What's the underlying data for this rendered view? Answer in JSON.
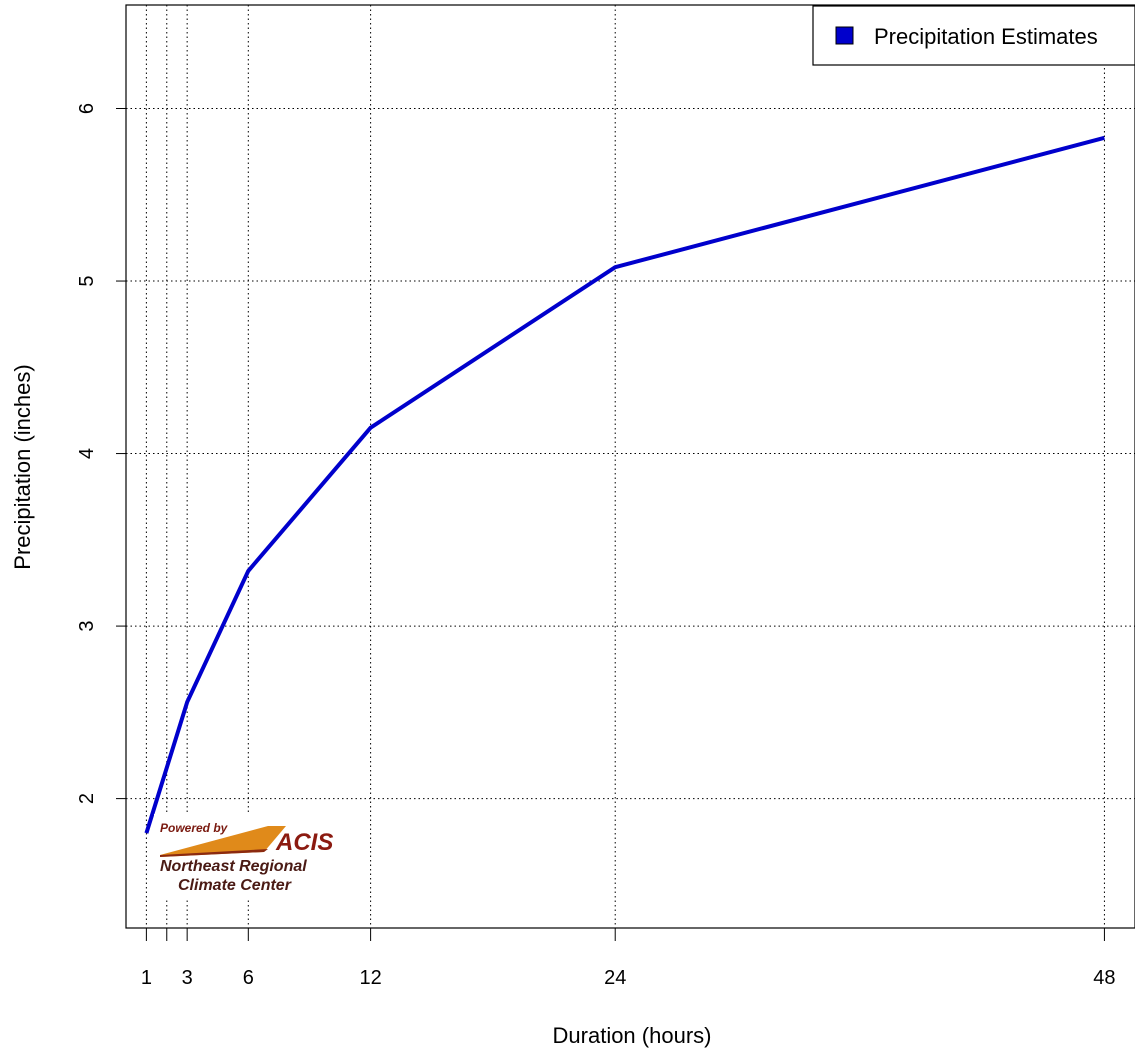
{
  "chart_data": {
    "type": "line",
    "title": "",
    "xlabel": "Duration (hours)",
    "ylabel": "Precipitation (inches)",
    "x": [
      1,
      2,
      3,
      6,
      12,
      24,
      48
    ],
    "x_tick_labels": [
      "1",
      "",
      "3",
      "6",
      "12",
      "24",
      "48"
    ],
    "y_ticks": [
      2,
      3,
      4,
      5,
      6
    ],
    "xlim": [
      0.0,
      49.5
    ],
    "ylim": [
      1.25,
      6.6
    ],
    "grid": true,
    "legend_position": "top-right",
    "series": [
      {
        "name": "Precipitation Estimates",
        "color": "#0000CC",
        "values": [
          1.8,
          2.18,
          2.56,
          3.32,
          4.15,
          5.08,
          5.83
        ]
      }
    ]
  },
  "logo": {
    "powered_by": "Powered by",
    "brand": "ACIS",
    "line1": "Northeast Regional",
    "line2": "Climate Center"
  }
}
